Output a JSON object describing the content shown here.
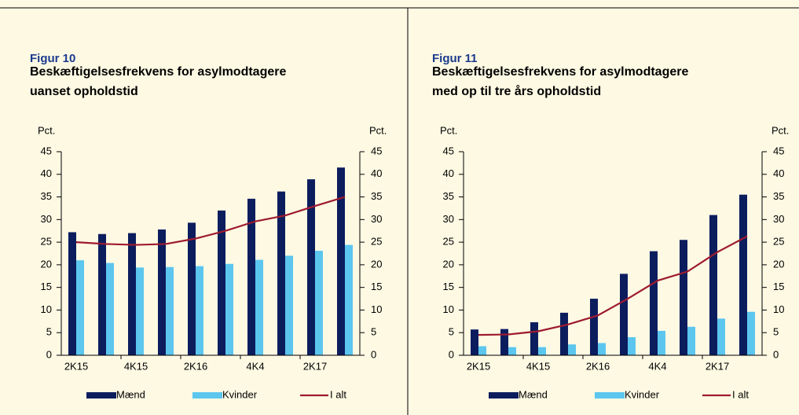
{
  "chart_data": [
    {
      "type": "bar",
      "figure": "Figur 10",
      "title": [
        "Beskæftigelsesfrekvens for asylmodtagere",
        "uanset opholdstid"
      ],
      "ylabel": "Pct.",
      "y2label": "Pct.",
      "categories": [
        "2K15",
        null,
        "4K15",
        null,
        "2K16",
        null,
        "4K4",
        null,
        "2K17",
        null
      ],
      "ylim": [
        0,
        45
      ],
      "yticks": [
        0,
        5,
        10,
        15,
        20,
        25,
        30,
        35,
        40,
        45
      ],
      "y2lim": [
        0,
        45
      ],
      "y2ticks": [
        0,
        5,
        10,
        15,
        20,
        25,
        30,
        35,
        40,
        45
      ],
      "series": [
        {
          "name": "Mænd",
          "kind": "bar",
          "color": "#0c1d5e",
          "values": [
            27.2,
            26.8,
            27,
            27.8,
            29.3,
            32,
            34.6,
            36.2,
            38.9,
            41.5
          ]
        },
        {
          "name": "Kvinder",
          "kind": "bar",
          "color": "#5cc6ef",
          "values": [
            21,
            20.4,
            19.4,
            19.5,
            19.7,
            20.2,
            21.1,
            22,
            23.1,
            24.4
          ]
        },
        {
          "name": "I alt",
          "kind": "line",
          "color": "#9e1b2e",
          "values": [
            25,
            24.6,
            24.4,
            24.6,
            25.8,
            27.5,
            29.6,
            30.9,
            33,
            35
          ]
        }
      ]
    },
    {
      "type": "bar",
      "figure": "Figur 11",
      "title": [
        "Beskæftigelsesfrekvens for asylmodtagere",
        "med op til tre års opholdstid"
      ],
      "ylabel": "Pct.",
      "y2label": "Pct.",
      "categories": [
        "2K15",
        null,
        "4K15",
        null,
        "2K16",
        null,
        "4K4",
        null,
        "2K17",
        null
      ],
      "ylim": [
        0,
        45
      ],
      "yticks": [
        0,
        5,
        10,
        15,
        20,
        25,
        30,
        35,
        40,
        45
      ],
      "y2lim": [
        0,
        45
      ],
      "y2ticks": [
        0,
        5,
        10,
        15,
        20,
        25,
        30,
        35,
        40,
        45
      ],
      "series": [
        {
          "name": "Mænd",
          "kind": "bar",
          "color": "#0c1d5e",
          "values": [
            5.7,
            5.8,
            7.3,
            9.4,
            12.5,
            18,
            23,
            25.5,
            31,
            35.5
          ]
        },
        {
          "name": "Kvinder",
          "kind": "bar",
          "color": "#5cc6ef",
          "values": [
            2,
            1.8,
            1.8,
            2.4,
            2.7,
            4,
            5.4,
            6.3,
            8.1,
            9.6
          ]
        },
        {
          "name": "I alt",
          "kind": "line",
          "color": "#9e1b2e",
          "values": [
            4.5,
            4.6,
            5.3,
            6.8,
            8.8,
            12.5,
            16.5,
            18.5,
            22.8,
            26.3
          ]
        }
      ]
    }
  ]
}
